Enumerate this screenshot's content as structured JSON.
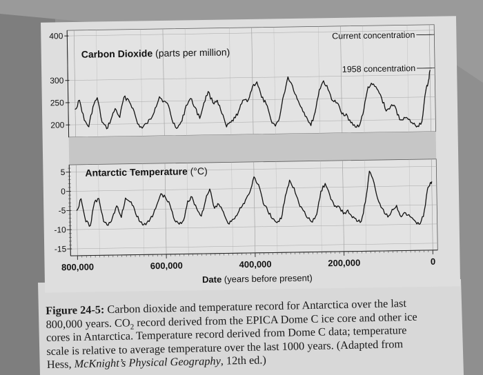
{
  "chart_data": [
    {
      "type": "line",
      "title": "Carbon Dioxide (parts per million)",
      "title_bold": "Carbon Dioxide",
      "title_rest": "(parts per million)",
      "ylabel_ticks": [
        "400",
        "300",
        "250",
        "200"
      ],
      "yticks": [
        400,
        300,
        250,
        200
      ],
      "ylim": [
        180,
        400
      ],
      "xlim": [
        800000,
        0
      ],
      "annotations": [
        {
          "text": "Current concentration",
          "value": 390
        },
        {
          "text": "1958 concentration",
          "value": 315
        }
      ],
      "series": [
        {
          "x": [
            800000,
            790000,
            780000,
            770000,
            760000,
            750000,
            740000,
            730000,
            720000,
            710000,
            700000,
            690000,
            680000,
            670000,
            660000,
            650000,
            640000,
            630000,
            620000,
            610000,
            600000,
            590000,
            580000,
            570000,
            560000,
            550000,
            540000,
            530000,
            520000,
            510000,
            500000,
            490000,
            480000,
            470000,
            460000,
            450000,
            440000,
            430000,
            420000,
            410000,
            400000,
            390000,
            380000,
            370000,
            360000,
            350000,
            340000,
            330000,
            320000,
            310000,
            300000,
            290000,
            280000,
            270000,
            260000,
            250000,
            240000,
            230000,
            220000,
            210000,
            200000,
            190000,
            180000,
            170000,
            160000,
            150000,
            140000,
            130000,
            120000,
            110000,
            100000,
            90000,
            80000,
            70000,
            60000,
            50000,
            40000,
            30000,
            20000,
            10000,
            5000,
            0
          ],
          "values": [
            235,
            255,
            210,
            195,
            240,
            260,
            205,
            190,
            210,
            235,
            215,
            260,
            255,
            235,
            200,
            190,
            200,
            210,
            235,
            260,
            250,
            240,
            200,
            190,
            205,
            240,
            255,
            235,
            210,
            245,
            270,
            245,
            250,
            220,
            190,
            200,
            210,
            230,
            250,
            250,
            280,
            290,
            255,
            240,
            205,
            190,
            210,
            260,
            300,
            280,
            250,
            230,
            210,
            190,
            220,
            270,
            290,
            270,
            245,
            240,
            215,
            215,
            195,
            185,
            190,
            225,
            275,
            280,
            270,
            250,
            220,
            230,
            230,
            200,
            205,
            200,
            190,
            185,
            195,
            265,
            280,
            310
          ]
        }
      ]
    },
    {
      "type": "line",
      "title": "Antarctic Temperature (°C)",
      "title_bold": "Antarctic Temperature",
      "title_rest": "(°C)",
      "ylabel_ticks": [
        "5",
        "0",
        "-5",
        "-10",
        "-15"
      ],
      "yticks": [
        5,
        0,
        -5,
        -10,
        -15
      ],
      "ylim": [
        -15,
        6
      ],
      "xlim": [
        800000,
        0
      ],
      "series": [
        {
          "x": [
            800000,
            790000,
            780000,
            770000,
            760000,
            750000,
            740000,
            730000,
            720000,
            710000,
            700000,
            690000,
            680000,
            670000,
            660000,
            650000,
            640000,
            630000,
            620000,
            610000,
            600000,
            590000,
            580000,
            570000,
            560000,
            550000,
            540000,
            530000,
            520000,
            510000,
            500000,
            490000,
            480000,
            470000,
            460000,
            450000,
            440000,
            430000,
            420000,
            410000,
            400000,
            390000,
            380000,
            370000,
            360000,
            350000,
            340000,
            330000,
            320000,
            310000,
            300000,
            290000,
            280000,
            270000,
            260000,
            250000,
            240000,
            230000,
            220000,
            210000,
            200000,
            190000,
            180000,
            170000,
            160000,
            150000,
            140000,
            130000,
            120000,
            110000,
            100000,
            90000,
            80000,
            70000,
            60000,
            50000,
            40000,
            30000,
            20000,
            10000,
            5000,
            0
          ],
          "values": [
            -5,
            -2,
            -8,
            -9,
            -3,
            -2,
            -8,
            -9,
            -7,
            -4,
            -7,
            -2,
            -3,
            -5,
            -8,
            -9,
            -8,
            -7,
            -4,
            -1,
            -2,
            -4,
            -8,
            -9,
            -8,
            -3,
            -2,
            -5,
            -7,
            -3,
            0,
            -5,
            -4,
            -6,
            -9,
            -8,
            -7,
            -5,
            -3,
            -1,
            3,
            1,
            -4,
            -6,
            -8,
            -9,
            -8,
            -2,
            2,
            0,
            -4,
            -6,
            -8,
            -9,
            -7,
            -1,
            1,
            -2,
            -5,
            -5,
            -7,
            -6,
            -8,
            -9,
            -9,
            -4,
            4,
            1,
            -4,
            -6,
            -8,
            -6,
            -5,
            -8,
            -7,
            -8,
            -9,
            -10,
            -8,
            -1,
            0,
            1
          ]
        }
      ]
    }
  ],
  "xaxis": {
    "ticks": [
      800000,
      600000,
      400000,
      200000,
      0
    ],
    "tick_labels": [
      "800,000",
      "600,000",
      "400,000",
      "200,000",
      "0"
    ],
    "label_bold": "Date",
    "label_rest": "(years before present)"
  },
  "caption": {
    "label": "Figure 24-5:",
    "line1": "Carbon dioxide and temperature record for Antarctica over the last",
    "line2_a": "800,000 years. CO",
    "line2_sub": "2",
    "line2_b": " record derived from the EPICA Dome C ice core and other ice",
    "line3": "cores in Antarctica. Temperature record derived from Dome C data; temperature",
    "line4": "scale is relative to average temperature over the last 1000 years. (Adapted from",
    "line5_a": "Hess, ",
    "line5_i": "McKnight’s Physical Geography",
    "line5_b": ", 12th ed.)"
  },
  "colors": {
    "panel_bg": "#dfdfdf",
    "band_bg": "#c9c9c9",
    "line": "#111111",
    "page_bg": "#8e8e8e"
  }
}
